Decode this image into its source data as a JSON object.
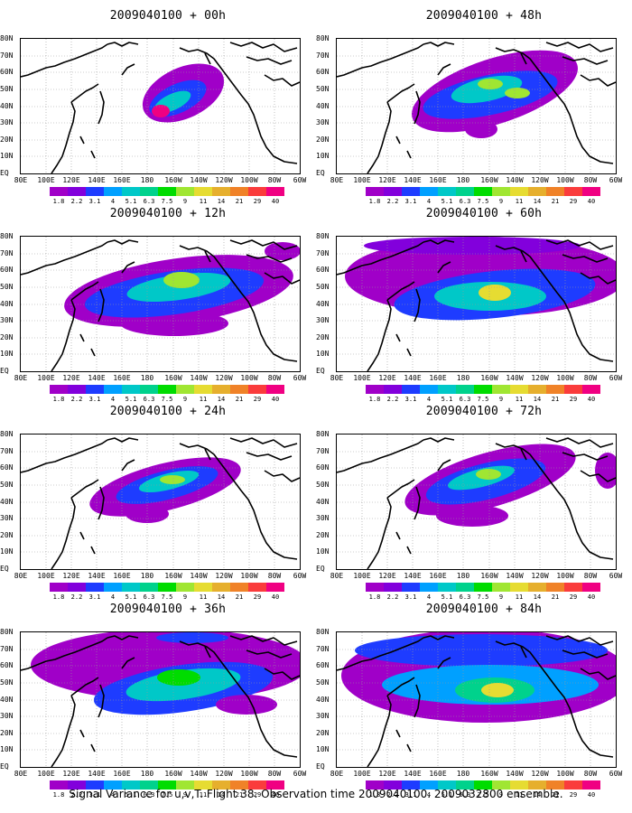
{
  "caption": "Signal Variance for u,v,T. Flight 38. Observation time 2009040100. 2009032800 ensemble.",
  "colorbar": {
    "labels": [
      "1.8",
      "2.2",
      "3.1",
      "4",
      "5.1",
      "6.3",
      "7.5",
      "9",
      "11",
      "14",
      "21",
      "29",
      "40"
    ],
    "colors": [
      "#a000c8",
      "#8200dc",
      "#1e3cff",
      "#00a0ff",
      "#00c8c8",
      "#00d28c",
      "#00dc00",
      "#a0e632",
      "#e6dc32",
      "#e6af2d",
      "#f08228",
      "#fa3c3c",
      "#f00082"
    ]
  },
  "x_labels": [
    "80E",
    "100E",
    "120E",
    "140E",
    "160E",
    "180",
    "160W",
    "140W",
    "120W",
    "100W",
    "80W",
    "60W"
  ],
  "y_labels": [
    "80N",
    "70N",
    "60N",
    "50N",
    "40N",
    "30N",
    "20N",
    "10N",
    "EQ"
  ],
  "panels": [
    {
      "title": "2009040100 + 00h",
      "level": 0
    },
    {
      "title": "2009040100 + 48h",
      "level": 4
    },
    {
      "title": "2009040100 + 12h",
      "level": 1
    },
    {
      "title": "2009040100 + 60h",
      "level": 5
    },
    {
      "title": "2009040100 + 24h",
      "level": 2
    },
    {
      "title": "2009040100 + 72h",
      "level": 6
    },
    {
      "title": "2009040100 + 36h",
      "level": 3
    },
    {
      "title": "2009040100 + 84h",
      "level": 7
    }
  ]
}
